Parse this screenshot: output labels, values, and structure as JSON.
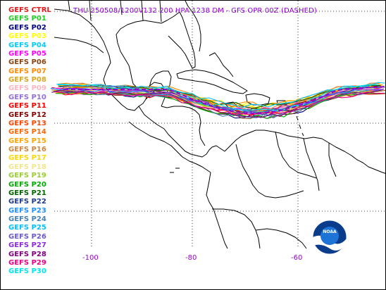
{
  "title": "THU 250508/1200V132  200 HPA 1238 DM - GFS OPR 00Z (DASHED)",
  "legend": [
    {
      "label": "GEFS CTRL",
      "color": "#e41a1c"
    },
    {
      "label": "GEFS P01",
      "color": "#22cc22"
    },
    {
      "label": "GEFS P02",
      "color": "#000080"
    },
    {
      "label": "GEFS P03",
      "color": "#ffff00"
    },
    {
      "label": "GEFS P04",
      "color": "#00ccff"
    },
    {
      "label": "GEFS P05",
      "color": "#ff00ff"
    },
    {
      "label": "GEFS P06",
      "color": "#8b4513"
    },
    {
      "label": "GEFS P07",
      "color": "#ff8c00"
    },
    {
      "label": "GEFS P08",
      "color": "#daa520"
    },
    {
      "label": "GEFS P09",
      "color": "#ffb6c1"
    },
    {
      "label": "GEFS P10",
      "color": "#9370db"
    },
    {
      "label": "GEFS P11",
      "color": "#ff0000"
    },
    {
      "label": "GEFS P12",
      "color": "#800000"
    },
    {
      "label": "GEFS P13",
      "color": "#ff4500"
    },
    {
      "label": "GEFS P14",
      "color": "#ff6600"
    },
    {
      "label": "GEFS P15",
      "color": "#ffa500"
    },
    {
      "label": "GEFS P16",
      "color": "#cd853f"
    },
    {
      "label": "GEFS P17",
      "color": "#ffd700"
    },
    {
      "label": "GEFS P18",
      "color": "#f0e68c"
    },
    {
      "label": "GEFS P19",
      "color": "#9acd32"
    },
    {
      "label": "GEFS P20",
      "color": "#00aa00"
    },
    {
      "label": "GEFS P21",
      "color": "#006400"
    },
    {
      "label": "GEFS P22",
      "color": "#1e3a8a"
    },
    {
      "label": "GEFS P23",
      "color": "#1e90ff"
    },
    {
      "label": "GEFS P24",
      "color": "#4682b4"
    },
    {
      "label": "GEFS P25",
      "color": "#00bfff"
    },
    {
      "label": "GEFS P26",
      "color": "#6a5acd"
    },
    {
      "label": "GEFS P27",
      "color": "#8a2be2"
    },
    {
      "label": "GEFS P28",
      "color": "#800080"
    },
    {
      "label": "GEFS P29",
      "color": "#ee0088"
    },
    {
      "label": "GEFS P30",
      "color": "#00e5ee"
    }
  ],
  "longitude_labels": [
    "-100",
    "-80",
    "-60"
  ],
  "logo": {
    "text": "NOAA"
  },
  "colors": {
    "title": "#9400d3",
    "axis_labels": "#9400d3",
    "coast": "#000000",
    "grid": "#000000",
    "opr": "#9400d3"
  }
}
